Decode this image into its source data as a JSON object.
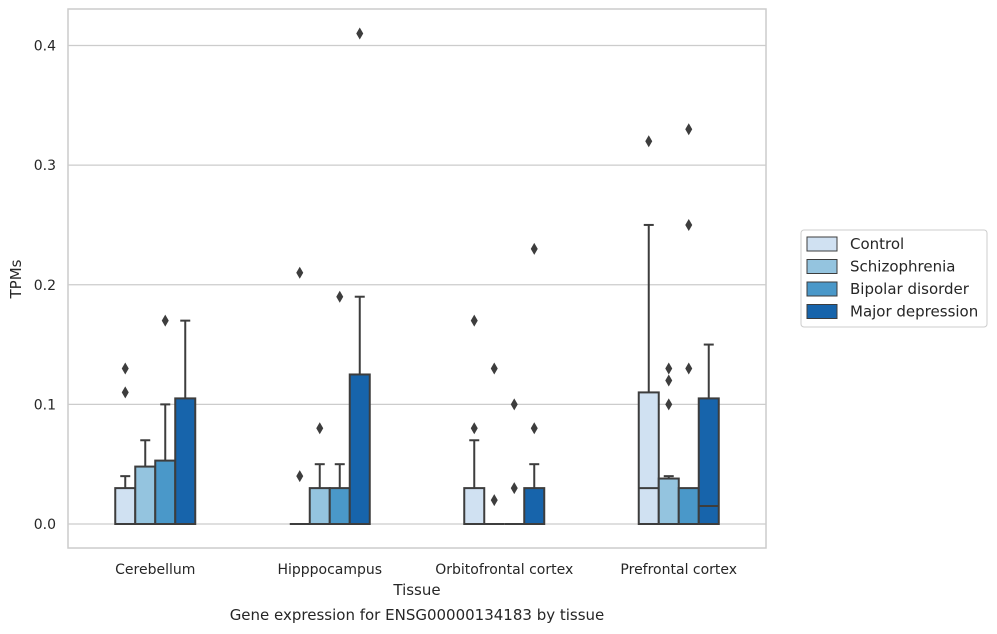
{
  "caption": "Gene expression for ENSG00000134183 by tissue",
  "chart_data": {
    "type": "box",
    "xlabel": "Tissue",
    "ylabel": "TPMs",
    "ylim": [
      -0.02,
      0.43
    ],
    "yticks": [
      0.0,
      0.1,
      0.2,
      0.3,
      0.4
    ],
    "ytick_labels": [
      "0.0",
      "0.1",
      "0.2",
      "0.3",
      "0.4"
    ],
    "grid": "horizontal",
    "legend_position": "right",
    "categories": [
      "Cerebellum",
      "Hipppocampus",
      "Orbitofrontal cortex",
      "Prefrontal cortex"
    ],
    "series": [
      {
        "name": "Control",
        "color": "#d0e1f2",
        "boxes": [
          {
            "q1": 0.0,
            "median": 0.0,
            "q3": 0.03,
            "whisker_low": 0.0,
            "whisker_high": 0.04,
            "outliers": [
              0.11,
              0.13
            ]
          },
          {
            "q1": 0.0,
            "median": 0.0,
            "q3": 0.0,
            "whisker_low": 0.0,
            "whisker_high": 0.0,
            "outliers": [
              0.04,
              0.21
            ]
          },
          {
            "q1": 0.0,
            "median": 0.0,
            "q3": 0.03,
            "whisker_low": 0.0,
            "whisker_high": 0.07,
            "outliers": [
              0.08,
              0.17
            ]
          },
          {
            "q1": 0.0,
            "median": 0.03,
            "q3": 0.11,
            "whisker_low": 0.0,
            "whisker_high": 0.25,
            "outliers": [
              0.32
            ]
          }
        ]
      },
      {
        "name": "Schizophrenia",
        "color": "#94c4df",
        "boxes": [
          {
            "q1": 0.0,
            "median": 0.0,
            "q3": 0.048,
            "whisker_low": 0.0,
            "whisker_high": 0.07,
            "outliers": []
          },
          {
            "q1": 0.0,
            "median": 0.0,
            "q3": 0.03,
            "whisker_low": 0.0,
            "whisker_high": 0.05,
            "outliers": [
              0.08
            ]
          },
          {
            "q1": 0.0,
            "median": 0.0,
            "q3": 0.0,
            "whisker_low": 0.0,
            "whisker_high": 0.0,
            "outliers": [
              0.02,
              0.13
            ]
          },
          {
            "q1": 0.0,
            "median": 0.0,
            "q3": 0.038,
            "whisker_low": 0.0,
            "whisker_high": 0.04,
            "outliers": [
              0.1,
              0.12,
              0.13
            ]
          }
        ]
      },
      {
        "name": "Bipolar disorder",
        "color": "#4a98c9",
        "boxes": [
          {
            "q1": 0.0,
            "median": 0.0,
            "q3": 0.053,
            "whisker_low": 0.0,
            "whisker_high": 0.1,
            "outliers": [
              0.17
            ]
          },
          {
            "q1": 0.0,
            "median": 0.0,
            "q3": 0.03,
            "whisker_low": 0.0,
            "whisker_high": 0.05,
            "outliers": [
              0.19
            ]
          },
          {
            "q1": 0.0,
            "median": 0.0,
            "q3": 0.0,
            "whisker_low": 0.0,
            "whisker_high": 0.0,
            "outliers": [
              0.03,
              0.1
            ]
          },
          {
            "q1": 0.0,
            "median": 0.0,
            "q3": 0.03,
            "whisker_low": 0.0,
            "whisker_high": 0.03,
            "outliers": [
              0.13,
              0.25,
              0.33
            ]
          }
        ]
      },
      {
        "name": "Major depression",
        "color": "#1764ab",
        "boxes": [
          {
            "q1": 0.0,
            "median": 0.0,
            "q3": 0.105,
            "whisker_low": 0.0,
            "whisker_high": 0.17,
            "outliers": []
          },
          {
            "q1": 0.0,
            "median": 0.0,
            "q3": 0.125,
            "whisker_low": 0.0,
            "whisker_high": 0.19,
            "outliers": [
              0.41
            ]
          },
          {
            "q1": 0.0,
            "median": 0.0,
            "q3": 0.03,
            "whisker_low": 0.0,
            "whisker_high": 0.05,
            "outliers": [
              0.08,
              0.23
            ]
          },
          {
            "q1": 0.0,
            "median": 0.015,
            "q3": 0.105,
            "whisker_low": 0.0,
            "whisker_high": 0.15,
            "outliers": []
          }
        ]
      }
    ]
  }
}
